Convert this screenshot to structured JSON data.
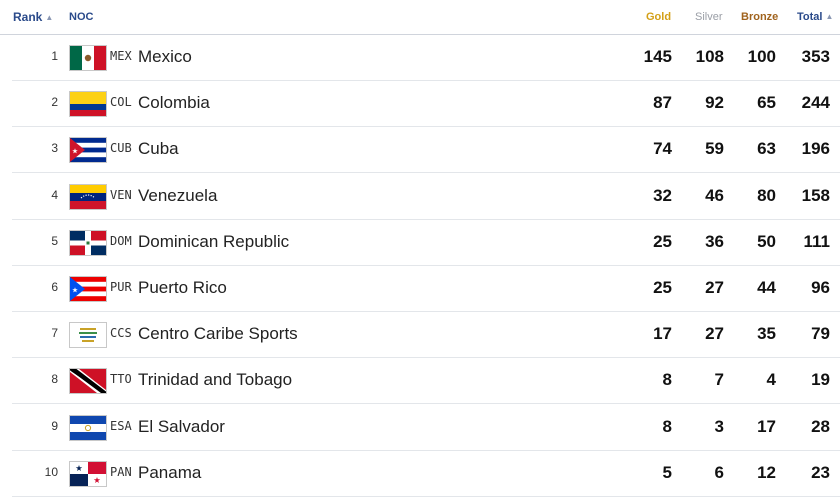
{
  "header": {
    "rank_label": "Rank",
    "noc_label": "NOC",
    "gold_label": "Gold",
    "silver_label": "Silver",
    "bronze_label": "Bronze",
    "total_label": "Total",
    "sort_icon": "sort-icon"
  },
  "rows": [
    {
      "rank": "1",
      "code": "MEX",
      "name": "Mexico",
      "gold": "145",
      "silver": "108",
      "bronze": "100",
      "total": "353",
      "flag": "mexico-flag-icon"
    },
    {
      "rank": "2",
      "code": "COL",
      "name": "Colombia",
      "gold": "87",
      "silver": "92",
      "bronze": "65",
      "total": "244",
      "flag": "colombia-flag-icon"
    },
    {
      "rank": "3",
      "code": "CUB",
      "name": "Cuba",
      "gold": "74",
      "silver": "59",
      "bronze": "63",
      "total": "196",
      "flag": "cuba-flag-icon"
    },
    {
      "rank": "4",
      "code": "VEN",
      "name": "Venezuela",
      "gold": "32",
      "silver": "46",
      "bronze": "80",
      "total": "158",
      "flag": "venezuela-flag-icon"
    },
    {
      "rank": "5",
      "code": "DOM",
      "name": "Dominican Republic",
      "gold": "25",
      "silver": "36",
      "bronze": "50",
      "total": "111",
      "flag": "dominican-republic-flag-icon"
    },
    {
      "rank": "6",
      "code": "PUR",
      "name": "Puerto Rico",
      "gold": "25",
      "silver": "27",
      "bronze": "44",
      "total": "96",
      "flag": "puerto-rico-flag-icon"
    },
    {
      "rank": "7",
      "code": "CCS",
      "name": "Centro Caribe Sports",
      "gold": "17",
      "silver": "27",
      "bronze": "35",
      "total": "79",
      "flag": "centro-caribe-sports-logo-icon"
    },
    {
      "rank": "8",
      "code": "TTO",
      "name": "Trinidad and Tobago",
      "gold": "8",
      "silver": "7",
      "bronze": "4",
      "total": "19",
      "flag": "trinidad-tobago-flag-icon"
    },
    {
      "rank": "9",
      "code": "ESA",
      "name": "El Salvador",
      "gold": "8",
      "silver": "3",
      "bronze": "17",
      "total": "28",
      "flag": "el-salvador-flag-icon"
    },
    {
      "rank": "10",
      "code": "PAN",
      "name": "Panama",
      "gold": "5",
      "silver": "6",
      "bronze": "12",
      "total": "23",
      "flag": "panama-flag-icon"
    }
  ]
}
